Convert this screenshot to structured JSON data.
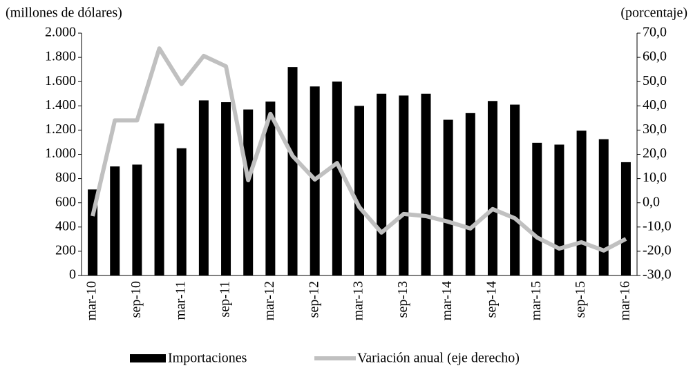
{
  "chart_data": {
    "type": "bar",
    "y_label": "(millones de dólares)",
    "y2_label": "(porcentaje)",
    "categories": [
      "mar-10",
      null,
      "sep-10",
      null,
      "mar-11",
      null,
      "sep-11",
      null,
      "mar-12",
      null,
      "sep-12",
      null,
      "mar-13",
      null,
      "sep-13",
      null,
      "mar-14",
      null,
      "sep-14",
      null,
      "mar-15",
      null,
      "sep-15",
      null,
      "mar-16"
    ],
    "series": [
      {
        "name": "Importaciones",
        "type": "bar",
        "color": "#000000",
        "values": [
          710,
          900,
          915,
          1255,
          1050,
          1445,
          1430,
          1370,
          1435,
          1720,
          1560,
          1600,
          1400,
          1500,
          1485,
          1500,
          1285,
          1340,
          1440,
          1410,
          1095,
          1080,
          1195,
          1125,
          935
        ]
      },
      {
        "name": "Variación anual (eje derecho)",
        "type": "line",
        "axis": "y2",
        "color": "#c0c0c0",
        "values": [
          -5.5,
          34,
          34,
          63.7,
          49,
          60.6,
          56.3,
          9.3,
          36.7,
          19.3,
          9.6,
          16.4,
          -1.8,
          -12.3,
          -4.6,
          -5.5,
          -7.8,
          -10.6,
          -2.6,
          -6.4,
          -14.3,
          -18.9,
          -16.3,
          -19.7,
          -14.9
        ]
      }
    ],
    "ylim": [
      0,
      2000
    ],
    "yticks": [
      0,
      200,
      400,
      600,
      800,
      {
        "value": 1000,
        "label": "1.000"
      },
      {
        "value": 1200,
        "label": "1.200"
      },
      {
        "value": 1400,
        "label": "1.400"
      },
      {
        "value": 1600,
        "label": "1.600"
      },
      {
        "value": 1800,
        "label": "1.800"
      },
      {
        "value": 2000,
        "label": "2.000"
      }
    ],
    "y2lim": [
      -30,
      70
    ],
    "y2ticks": [
      {
        "value": -30,
        "label": "-30,0"
      },
      {
        "value": -20,
        "label": "-20,0"
      },
      {
        "value": -10,
        "label": "-10,0"
      },
      {
        "value": 0,
        "label": "0,0"
      },
      {
        "value": 10,
        "label": "10,0"
      },
      {
        "value": 20,
        "label": "20,0"
      },
      {
        "value": 30,
        "label": "30,0"
      },
      {
        "value": 40,
        "label": "40,0"
      },
      {
        "value": 50,
        "label": "50,0"
      },
      {
        "value": 60,
        "label": "60,0"
      },
      {
        "value": 70,
        "label": "70,0"
      }
    ],
    "grid": false
  }
}
